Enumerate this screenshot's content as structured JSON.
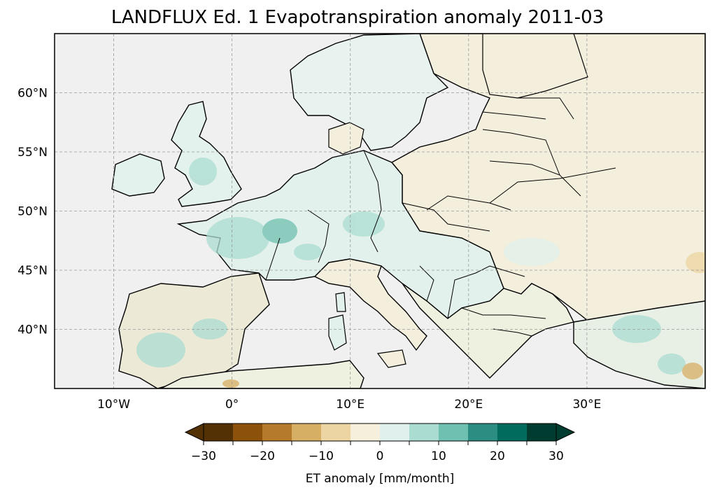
{
  "title": "LANDFLUX Ed. 1 Evapotranspiration anomaly 2011-03",
  "map": {
    "projection": "PlateCarree",
    "extent": {
      "lon": [
        -15,
        40
      ],
      "lat": [
        35,
        65
      ]
    },
    "lat_ticks": [
      {
        "value": 60,
        "label": "60°N"
      },
      {
        "value": 55,
        "label": "55°N"
      },
      {
        "value": 50,
        "label": "50°N"
      },
      {
        "value": 45,
        "label": "45°N"
      },
      {
        "value": 40,
        "label": "40°N"
      }
    ],
    "lon_ticks": [
      {
        "value": -10,
        "label": "10°W"
      },
      {
        "value": 0,
        "label": "0°"
      },
      {
        "value": 10,
        "label": "10°E"
      },
      {
        "value": 20,
        "label": "20°E"
      },
      {
        "value": 30,
        "label": "30°E"
      }
    ],
    "ocean_color": "#f0f0f0",
    "gridlines": true
  },
  "colorbar": {
    "label": "ET anomaly [mm/month]",
    "range": [
      -30,
      30
    ],
    "step": 5,
    "extend": "both",
    "tick_labels": [
      "−30",
      "−20",
      "−10",
      "0",
      "10",
      "20",
      "30"
    ],
    "colors": [
      "#543005",
      "#8c510a",
      "#b57b2a",
      "#d6ae64",
      "#ecd5a2",
      "#f5efdb",
      "#e0f0ed",
      "#abdcd1",
      "#6fc0b0",
      "#2c8d83",
      "#016c5e",
      "#013c31"
    ]
  }
}
